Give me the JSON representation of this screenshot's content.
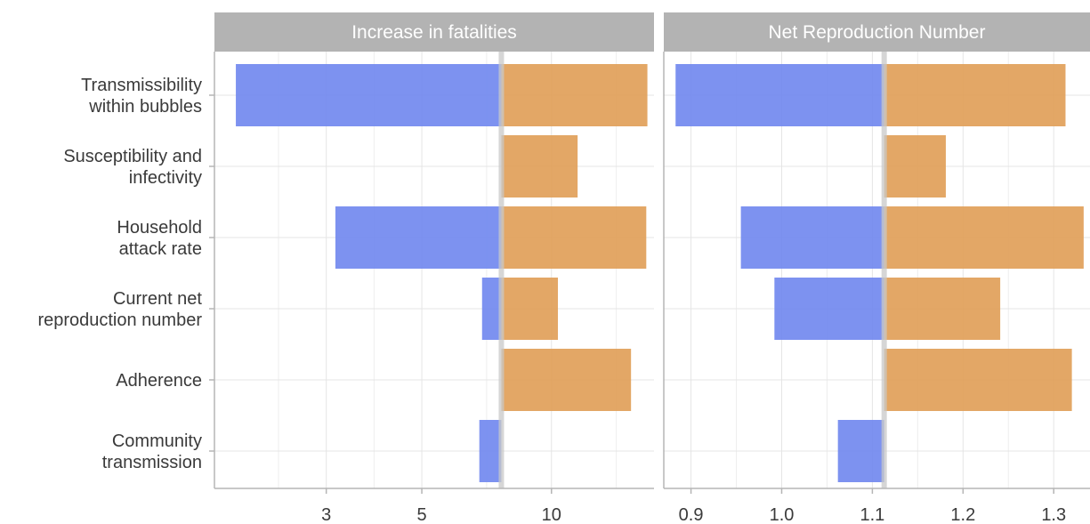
{
  "chart_data": [
    {
      "type": "bar",
      "orientation": "horizontal-tornado",
      "title": "Increase in fatalities",
      "x_scale": "log",
      "xlim": [
        1.65,
        17.3
      ],
      "baseline": 7.65,
      "x_ticks": [
        3,
        5,
        10
      ],
      "x_tick_labels": [
        "3",
        "5",
        "10"
      ],
      "categories": [
        "Transmissibility within bubbles",
        "Susceptibility and infectivity",
        "Household attack rate",
        "Current net reproduction number",
        "Adherence",
        "Community transmission"
      ],
      "bars": [
        {
          "low": 1.85,
          "high": 16.7
        },
        {
          "low": 7.65,
          "high": 11.5
        },
        {
          "low": 3.15,
          "high": 16.6
        },
        {
          "low": 6.9,
          "high": 10.35
        },
        {
          "low": 7.65,
          "high": 15.3
        },
        {
          "low": 6.8,
          "high": 7.65
        }
      ],
      "grid": true,
      "legend": "none"
    },
    {
      "type": "bar",
      "orientation": "horizontal-tornado",
      "title": "Net Reproduction Number",
      "x_scale": "linear",
      "xlim": [
        0.87,
        1.34
      ],
      "baseline": 1.113,
      "x_ticks": [
        0.9,
        1.0,
        1.1,
        1.2,
        1.3
      ],
      "x_tick_labels": [
        "0.9",
        "1.0",
        "1.1",
        "1.2",
        "1.3"
      ],
      "categories": [
        "Transmissibility within bubbles",
        "Susceptibility and infectivity",
        "Household attack rate",
        "Current net reproduction number",
        "Adherence",
        "Community transmission"
      ],
      "bars": [
        {
          "low": 0.883,
          "high": 1.313
        },
        {
          "low": 1.113,
          "high": 1.181
        },
        {
          "low": 0.955,
          "high": 1.333
        },
        {
          "low": 0.992,
          "high": 1.241
        },
        {
          "low": 1.113,
          "high": 1.32
        },
        {
          "low": 1.062,
          "high": 1.113
        }
      ],
      "grid": true,
      "legend": "none"
    }
  ],
  "row_labels": [
    [
      "Transmissibility",
      "within bubbles"
    ],
    [
      "Susceptibility and",
      "infectivity"
    ],
    [
      "Household",
      "attack rate"
    ],
    [
      "Current net",
      "reproduction number"
    ],
    [
      "Adherence"
    ],
    [
      "Community",
      "transmission"
    ]
  ],
  "colors": {
    "low_bar": "#6f86ee",
    "high_bar": "#e1a059",
    "strip_bg": "#b3b3b3",
    "strip_text": "#ffffff",
    "grid": "#e5e5e5",
    "axis": "#b5b5b5",
    "baseline": "#c8c8c8"
  }
}
